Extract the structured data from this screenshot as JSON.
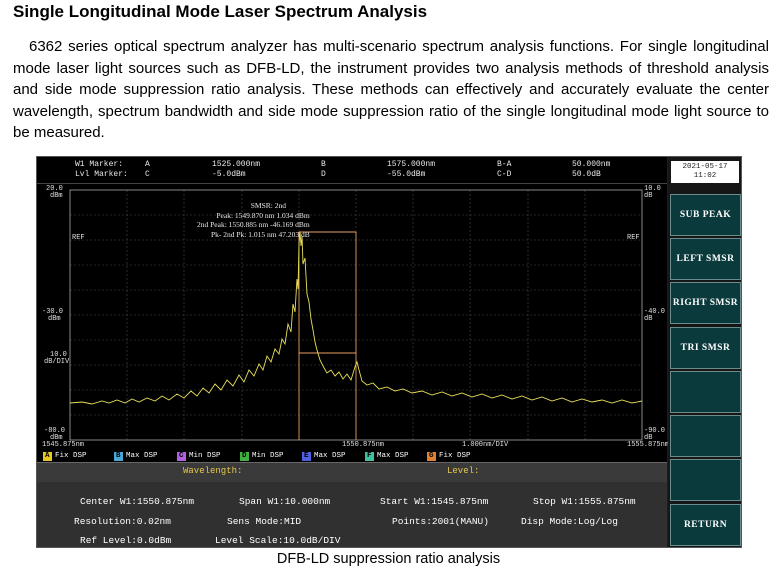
{
  "page": {
    "title": "Single Longitudinal Mode Laser Spectrum Analysis",
    "intro": "6362 series optical spectrum analyzer has multi-scenario spectrum analysis functions. For single longitudinal mode laser light sources such as DFB-LD, the instrument provides two analysis methods of threshold analysis and side mode suppression ratio analysis. These methods can effectively and accurately evaluate the center wavelength, spectrum bandwidth and side mode suppression ratio of the single longitudinal mode light source to be measured.",
    "caption": "DFB-LD suppression ratio analysis"
  },
  "header": {
    "row1": {
      "label": "W1 Marker:",
      "a": "A",
      "a_val": "1525.000nm",
      "b": "B",
      "b_val": "1575.000nm",
      "ba": "B-A",
      "ba_val": "50.000nm"
    },
    "row2": {
      "label": "Lvl Marker:",
      "c": "C",
      "c_val": "-5.0dBm",
      "d": "D",
      "d_val": "-55.0dBm",
      "cd": "C-D",
      "cd_val": "50.0dB"
    }
  },
  "plot": {
    "y_left": {
      "top": "20.0",
      "top_unit": "dBm",
      "ref": "REF",
      "mid": "-30.0",
      "mid_unit": "dBm",
      "scale": "10.0",
      "scale_unit": "dB/DIV",
      "bottom": "-80.0",
      "bottom_unit": "dBm"
    },
    "y_right": {
      "top": "10.0",
      "top_unit": "dB",
      "ref": "REF",
      "mid": "-40.0",
      "mid_unit": "dB",
      "bottom": "-90.0",
      "bottom_unit": "dB"
    },
    "x_axis": {
      "start": "1545.875nm",
      "center": "1550.875nm",
      "span": "1.000nm/DIV",
      "stop": "1555.875nm"
    },
    "info": {
      "title": "SMSR: 2nd",
      "peak": "Peak: 1549.870 nm  1.034 dBm",
      "second": "2nd Peak: 1550.885 nm -46.169 dBm",
      "diff": "Pk- 2nd Pk: 1.015 nm  47.203 dB"
    }
  },
  "trace_bar": [
    {
      "letter": "A",
      "text": "Fix  DSP",
      "color": "#e6c820"
    },
    {
      "letter": "B",
      "text": "Max  DSP",
      "color": "#4aa8d8"
    },
    {
      "letter": "C",
      "text": "Min  DSP",
      "color": "#b060e0"
    },
    {
      "letter": "D",
      "text": "Min  DSP",
      "color": "#40b040"
    },
    {
      "letter": "E",
      "text": "Max  DSP",
      "color": "#5060e0"
    },
    {
      "letter": "F",
      "text": "Max  DSP",
      "color": "#40c0a0"
    },
    {
      "letter": "G",
      "text": "Fix  DSP",
      "color": "#e08030"
    }
  ],
  "params": {
    "tab_wavelength": "Wavelength:",
    "tab_level": "Level:",
    "center": "Center W1:1550.875nm",
    "span": "Span W1:10.000nm",
    "start": "Start W1:1545.875nm",
    "stop": "Stop W1:1555.875nm",
    "resolution": "Resolution:0.02nm",
    "sens_mode": "Sens Mode:MID",
    "points": "Points:2001(MANU)",
    "disp_mode": "Disp Mode:Log/Log",
    "ref_level": "Ref Level:0.0dBm",
    "level_scale": "Level Scale:10.0dB/DIV"
  },
  "softkeys": {
    "date": "2021-05-17",
    "time": "11:02",
    "sub_peak": "SUB PEAK",
    "left_smsr": "LEFT SMSR",
    "right_smsr": "RIGHT SMSR",
    "tri_smsr": "TRI SMSR",
    "return": "RETURN"
  },
  "colors": {
    "trace": "#e8e05a",
    "markers": "#e8a060",
    "grid": "#4a4a4a",
    "softkey_bg": "#0b3a3d",
    "tab_text": "#e6c84a"
  }
}
